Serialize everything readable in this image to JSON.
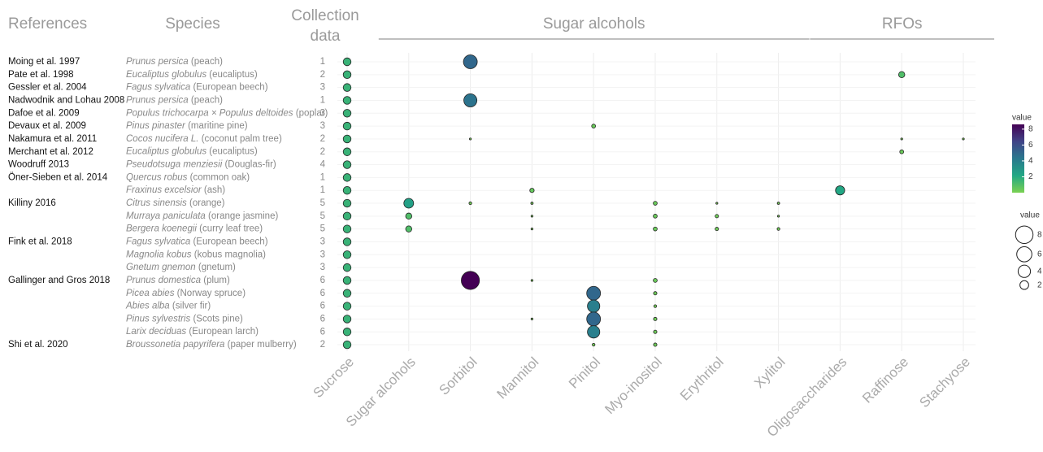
{
  "chart_data": {
    "type": "bubble",
    "headers": {
      "references": "References",
      "species": "Species",
      "collection": "Collection data"
    },
    "categories": [
      "Sucrose",
      "Sugar alcohols",
      "Sorbitol",
      "Mannitol",
      "Pinitol",
      "Myo-inositol",
      "Erythritol",
      "Xylitol",
      "Oligosaccharides",
      "Raffinose",
      "Stachyose"
    ],
    "groups": [
      {
        "label": "Sugar alcohols",
        "from": 1,
        "to": 7
      },
      {
        "label": "RFOs",
        "from": 8,
        "to": 10
      }
    ],
    "references": [
      "Moing et al. 1997",
      "Pate et al.  1998",
      "Gessler et al. 2004",
      "Nadwodnik and Lohau 2008",
      "Dafoe et al. 2009",
      "Devaux et al. 2009",
      "Nakamura et al. 2011",
      "Merchant et al. 2012",
      "Woodruff 2013",
      "Öner-Sieben et al. 2014",
      null,
      "Killiny 2016",
      null,
      null,
      "Fink et al. 2018",
      null,
      null,
      "Gallinger and Gros 2018",
      null,
      null,
      null,
      null,
      "Shi et al. 2020"
    ],
    "species": [
      {
        "latin": "Prunus persica",
        "common": "(peach)"
      },
      {
        "latin": "Eucaliptus globulus",
        "common": "(eucaliptus)"
      },
      {
        "latin": "Fagus sylvatica",
        "common": "(European beech)"
      },
      {
        "latin": "Prunus persica",
        "common": "(peach)"
      },
      {
        "latin": "Populus trichocarpa × Populus deltoides",
        "common": "(poplar)"
      },
      {
        "latin": "Pinus pinaster",
        "common": "(maritine pine)"
      },
      {
        "latin": "Cocos nucifera L.",
        "common": "(coconut palm tree)"
      },
      {
        "latin": "Eucaliptus globulus",
        "common": "(eucaliptus)"
      },
      {
        "latin": "Pseudotsuga menziesii",
        "common": "(Douglas-fir)"
      },
      {
        "latin": "Quercus robus",
        "common": "(common oak)"
      },
      {
        "latin": "Fraxinus excelsior",
        "common": "(ash)"
      },
      {
        "latin": "Citrus sinensis",
        "common": "(orange)"
      },
      {
        "latin": "Murraya paniculata",
        "common": "(orange jasmine)"
      },
      {
        "latin": "Bergera koenegii",
        "common": "(curry leaf tree)"
      },
      {
        "latin": "Fagus sylvatica",
        "common": "(European beech)"
      },
      {
        "latin": "Magnolia kobus",
        "common": "(kobus magnolia)"
      },
      {
        "latin": "Gnetum gnemon",
        "common": "(gnetum)"
      },
      {
        "latin": "Prunus domestica",
        "common": "(plum)"
      },
      {
        "latin": "Picea abies",
        "common": "(Norway spruce)"
      },
      {
        "latin": "Abies alba",
        "common": "(silver fir)"
      },
      {
        "latin": "Pinus sylvestris",
        "common": "(Scots pine)"
      },
      {
        "latin": "Larix deciduas",
        "common": "(European larch)"
      },
      {
        "latin": "Broussonetia papyrifera",
        "common": "(paper mulberry)"
      }
    ],
    "collection": [
      1,
      2,
      3,
      1,
      3,
      3,
      2,
      2,
      4,
      1,
      1,
      5,
      5,
      5,
      3,
      3,
      3,
      6,
      6,
      6,
      6,
      6,
      2
    ],
    "values": [
      [
        1.6,
        null,
        5,
        null,
        null,
        null,
        null,
        null,
        null,
        null,
        null
      ],
      [
        1.6,
        null,
        null,
        null,
        null,
        null,
        null,
        null,
        null,
        1,
        null
      ],
      [
        1.6,
        null,
        null,
        null,
        null,
        null,
        null,
        null,
        null,
        null,
        null
      ],
      [
        1.6,
        null,
        4.5,
        null,
        null,
        null,
        null,
        null,
        null,
        null,
        null
      ],
      [
        1.6,
        null,
        null,
        null,
        null,
        null,
        null,
        null,
        null,
        null,
        null
      ],
      [
        1.6,
        null,
        null,
        null,
        0.4,
        null,
        null,
        null,
        null,
        null,
        null
      ],
      [
        1.6,
        null,
        0.1,
        null,
        null,
        null,
        null,
        null,
        null,
        0.1,
        0.1
      ],
      [
        1.6,
        null,
        null,
        null,
        null,
        null,
        null,
        null,
        null,
        0.4,
        null
      ],
      [
        1.6,
        null,
        null,
        null,
        null,
        null,
        null,
        null,
        null,
        null,
        null
      ],
      [
        1.6,
        null,
        null,
        null,
        null,
        null,
        null,
        null,
        null,
        null,
        null
      ],
      [
        1.6,
        null,
        null,
        0.5,
        null,
        null,
        null,
        null,
        2.2,
        null,
        null
      ],
      [
        1.6,
        2.5,
        0.2,
        0.15,
        null,
        0.4,
        0.1,
        0.15,
        null,
        null,
        null
      ],
      [
        1.6,
        1,
        null,
        0.1,
        null,
        0.4,
        0.3,
        0.1,
        null,
        null,
        null
      ],
      [
        1.6,
        1,
        null,
        0.1,
        null,
        0.4,
        0.3,
        0.2,
        null,
        null,
        null
      ],
      [
        1.6,
        null,
        null,
        null,
        null,
        null,
        null,
        null,
        null,
        null,
        null
      ],
      [
        1.6,
        null,
        null,
        null,
        null,
        null,
        null,
        null,
        null,
        null,
        null
      ],
      [
        1.6,
        null,
        null,
        null,
        null,
        null,
        null,
        null,
        null,
        null,
        null
      ],
      [
        1.6,
        null,
        8.6,
        0.1,
        null,
        0.4,
        null,
        null,
        null,
        null,
        null
      ],
      [
        1.6,
        null,
        null,
        null,
        5,
        0.3,
        null,
        null,
        null,
        null,
        null
      ],
      [
        1.6,
        null,
        null,
        null,
        4,
        0.2,
        null,
        null,
        null,
        null,
        null
      ],
      [
        1.6,
        null,
        null,
        0.1,
        5,
        0.3,
        null,
        null,
        null,
        null,
        null
      ],
      [
        1.6,
        null,
        null,
        null,
        4,
        0.3,
        null,
        null,
        null,
        null,
        null
      ],
      [
        1.6,
        null,
        null,
        null,
        0.2,
        0.3,
        null,
        null,
        null,
        null,
        null
      ]
    ],
    "clim": [
      0,
      8.6
    ],
    "colorscale": [
      "#7ad151",
      "#22a884",
      "#2a788e",
      "#414487",
      "#440154"
    ],
    "color_legend": {
      "title": "value",
      "ticks": [
        2,
        4,
        6,
        8
      ]
    },
    "size_legend": {
      "title": "value",
      "sizes": [
        8,
        6,
        4,
        2
      ]
    },
    "grid": true
  }
}
